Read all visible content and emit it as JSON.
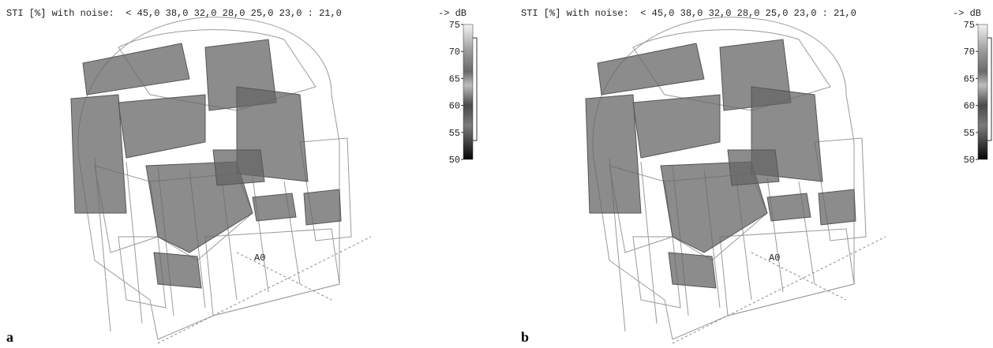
{
  "panels": [
    {
      "label": "a",
      "header": "STI [%] with noise:  < 45,0 38,0 32,0 28,0 25,0 23,0 : 21,0",
      "unit": "-> dB",
      "ticks": [
        75,
        70,
        65,
        60,
        55,
        50
      ],
      "marker": "A0"
    },
    {
      "label": "b",
      "header": "STI [%] with noise:  < 45,0 38,0 32,0 28,0 25,0 23,0 : 21,0",
      "unit": "-> dB",
      "ticks": [
        75,
        70,
        65,
        60,
        55,
        50
      ],
      "marker": "A0"
    }
  ]
}
